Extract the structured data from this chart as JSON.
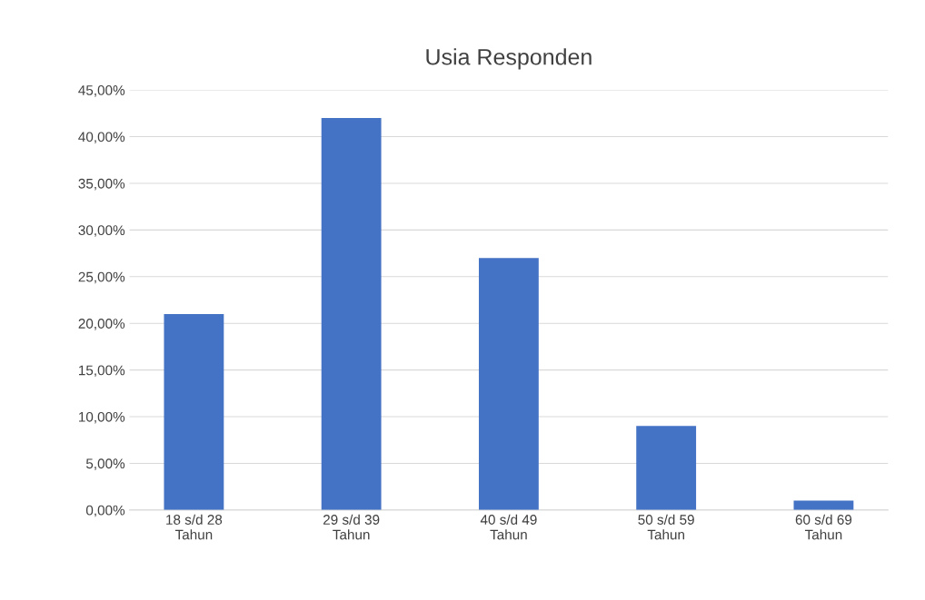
{
  "chart_data": {
    "type": "bar",
    "title": "Usia Responden",
    "categories": [
      "18 s/d 28\nTahun",
      "29 s/d 39\nTahun",
      "40 s/d 49\nTahun",
      "50 s/d 59\nTahun",
      "60 s/d 69\nTahun"
    ],
    "values": [
      21,
      42,
      27,
      9,
      1
    ],
    "color": "#4472c4",
    "ylim": [
      0,
      45
    ],
    "yticks": [
      {
        "value": 0,
        "label": "0,00%"
      },
      {
        "value": 5,
        "label": "5,00%"
      },
      {
        "value": 10,
        "label": "10,00%"
      },
      {
        "value": 15,
        "label": "15,00%"
      },
      {
        "value": 20,
        "label": "20,00%"
      },
      {
        "value": 25,
        "label": "25,00%"
      },
      {
        "value": 30,
        "label": "30,00%"
      },
      {
        "value": 35,
        "label": "35,00%"
      },
      {
        "value": 40,
        "label": "40,00%"
      },
      {
        "value": 45,
        "label": "45,00%"
      }
    ],
    "grid": "y"
  }
}
